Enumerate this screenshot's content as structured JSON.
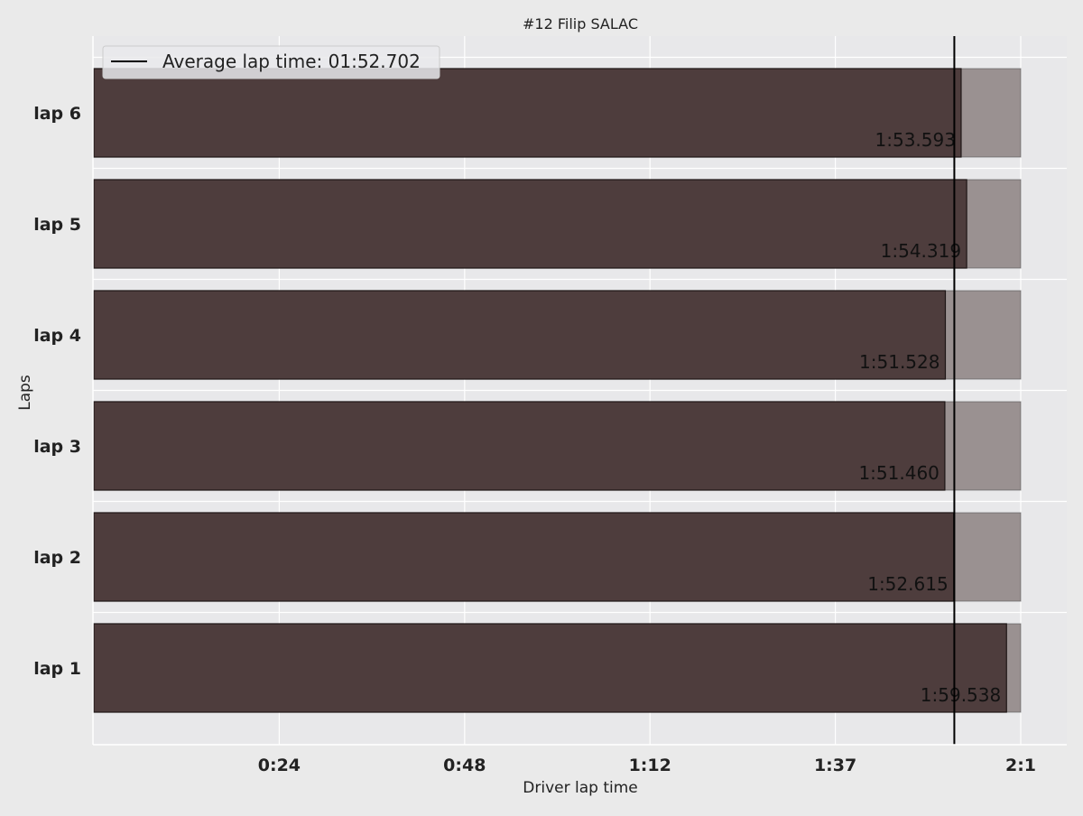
{
  "chart_data": {
    "type": "bar",
    "orientation": "horizontal",
    "title": "#12  Filip SALAC",
    "xlabel": "Driver lap time",
    "ylabel": "Laps",
    "categories": [
      "lap 1",
      "lap 2",
      "lap 3",
      "lap 4",
      "lap 5",
      "lap 6"
    ],
    "series": [
      {
        "values": [
          119.538,
          112.615,
          111.46,
          111.528,
          114.319,
          113.593
        ],
        "value_labels": [
          "1:59.538",
          "1:52.615",
          "1:51.460",
          "1:51.528",
          "1:54.319",
          "1:53.593"
        ],
        "color": "#4e3d3d"
      }
    ],
    "background_bar_value": 121.4,
    "background_bar_color": "#9a9191",
    "reference_line": {
      "value": 112.702,
      "label": "Average lap time: 01:52.702",
      "color": "#000000"
    },
    "xlim": [
      0,
      121.4
    ],
    "xticks": [
      {
        "value": 24.28,
        "label": "0:24"
      },
      {
        "value": 48.56,
        "label": "0:48"
      },
      {
        "value": 72.84,
        "label": "1:12"
      },
      {
        "value": 97.12,
        "label": "1:37"
      },
      {
        "value": 121.4,
        "label": "2:1"
      }
    ],
    "grid": true,
    "legend_position": "top-left",
    "colors": {
      "figure_bg": "#eaeaea",
      "axes_bg": "#e8e8ea",
      "grid": "#ffffff",
      "text": "#222222"
    }
  }
}
